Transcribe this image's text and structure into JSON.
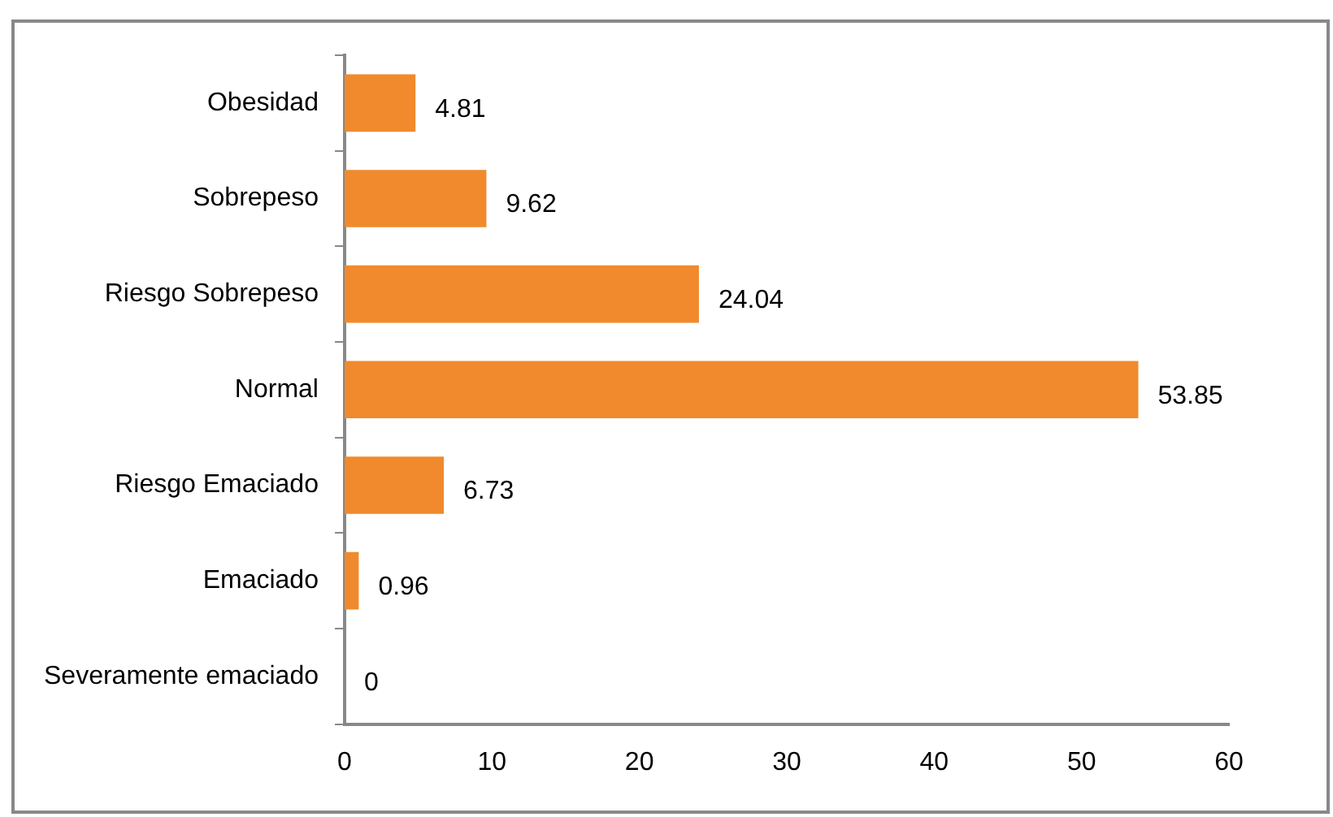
{
  "chart_data": {
    "type": "bar",
    "orientation": "horizontal",
    "categories": [
      "Obesidad",
      "Sobrepeso",
      "Riesgo Sobrepeso",
      "Normal",
      "Riesgo Emaciado",
      "Emaciado",
      "Severamente emaciado"
    ],
    "values": [
      4.81,
      9.62,
      24.04,
      53.85,
      6.73,
      0.96,
      0
    ],
    "color": "#f08a2c",
    "data_labels": true,
    "xlim": [
      0,
      60
    ],
    "xticks": [
      0,
      10,
      20,
      30,
      40,
      50,
      60
    ],
    "grid": false,
    "legend": false
  }
}
